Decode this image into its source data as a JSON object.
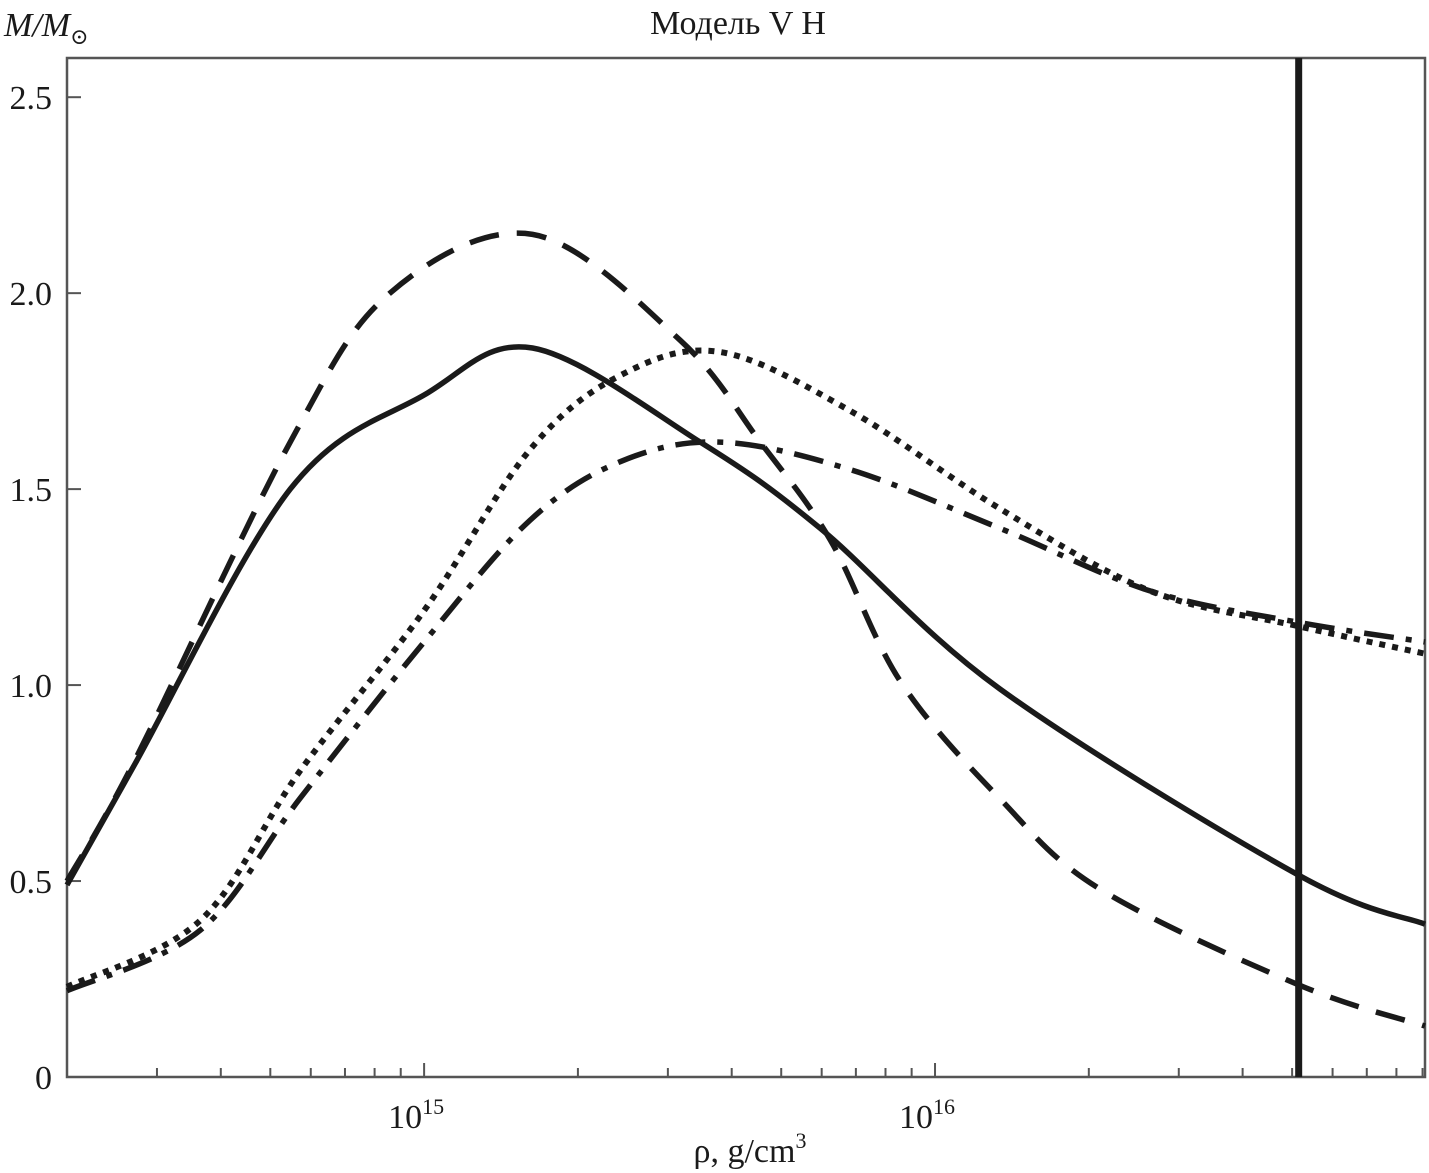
{
  "chart_data": {
    "type": "line",
    "title": "Модель V H",
    "ylabel": "M/M⊙",
    "ylabel_parts": {
      "main": "M/M",
      "sub": "⊙"
    },
    "xlabel": "ρ, g/cm3",
    "xlabel_parts": {
      "main": "ρ, g/cm",
      "sup": "3"
    },
    "x_scale": "log",
    "xlim": [
      200000000000000.0,
      9.1e+16
    ],
    "ylim": [
      0,
      2.6
    ],
    "x_ticks": [
      {
        "value": 1000000000000000.0,
        "base": "10",
        "exp": "15"
      },
      {
        "value": 1e+16,
        "base": "10",
        "exp": "16"
      }
    ],
    "y_ticks": [
      {
        "value": 0,
        "label": "0"
      },
      {
        "value": 0.5,
        "label": "0.5"
      },
      {
        "value": 1.0,
        "label": "1.0"
      },
      {
        "value": 1.5,
        "label": "1.5"
      },
      {
        "value": 2.0,
        "label": "2.0"
      },
      {
        "value": 2.5,
        "label": "2.5"
      }
    ],
    "grid": false,
    "color": "#1a1a1a",
    "vertical_line": {
      "x": 5.15e+16,
      "style": "solid"
    },
    "series": [
      {
        "style": "solid",
        "x": [
          200000000000000.0,
          272000000000000.0,
          547000000000000.0,
          1000000000000000.0,
          1630000000000000.0,
          3470000000000000.0,
          5960000000000000.0,
          1.34e+16,
          5.15e+16,
          9.1e+16
        ],
        "y": [
          0.49,
          0.8,
          1.5,
          1.74,
          1.86,
          1.62,
          1.4,
          0.99,
          0.515,
          0.39
        ]
      },
      {
        "style": "dashed",
        "x": [
          200000000000000.0,
          272000000000000.0,
          547000000000000.0,
          857000000000000.0,
          1630000000000000.0,
          3170000000000000.0,
          4550000000000000.0,
          6240000000000000.0,
          8550000000000000.0,
          1.34e+16,
          2.1e+16,
          5.15e+16,
          9.1e+16
        ],
        "y": [
          0.5,
          0.81,
          1.62,
          2.0,
          2.15,
          1.88,
          1.62,
          1.37,
          1.01,
          0.71,
          0.48,
          0.235,
          0.13
        ]
      },
      {
        "style": "dotted",
        "x": [
          200000000000000.0,
          365000000000000.0,
          571000000000000.0,
          1000000000000000.0,
          1610000000000000.0,
          2420000000000000.0,
          3790000000000000.0,
          6820000000000000.0,
          1.34e+16,
          2.64e+16,
          5.15e+16,
          9.1e+16
        ],
        "y": [
          0.23,
          0.4,
          0.78,
          1.19,
          1.6,
          1.79,
          1.85,
          1.7,
          1.45,
          1.24,
          1.15,
          1.08
        ]
      },
      {
        "style": "dash-dot",
        "x": [
          200000000000000.0,
          365000000000000.0,
          571000000000000.0,
          1000000000000000.0,
          1610000000000000.0,
          2420000000000000.0,
          3790000000000000.0,
          6820000000000000.0,
          1.34e+16,
          2.64e+16,
          5.15e+16,
          9.1e+16
        ],
        "y": [
          0.22,
          0.375,
          0.71,
          1.11,
          1.42,
          1.57,
          1.62,
          1.55,
          1.4,
          1.24,
          1.16,
          1.11
        ]
      }
    ]
  }
}
